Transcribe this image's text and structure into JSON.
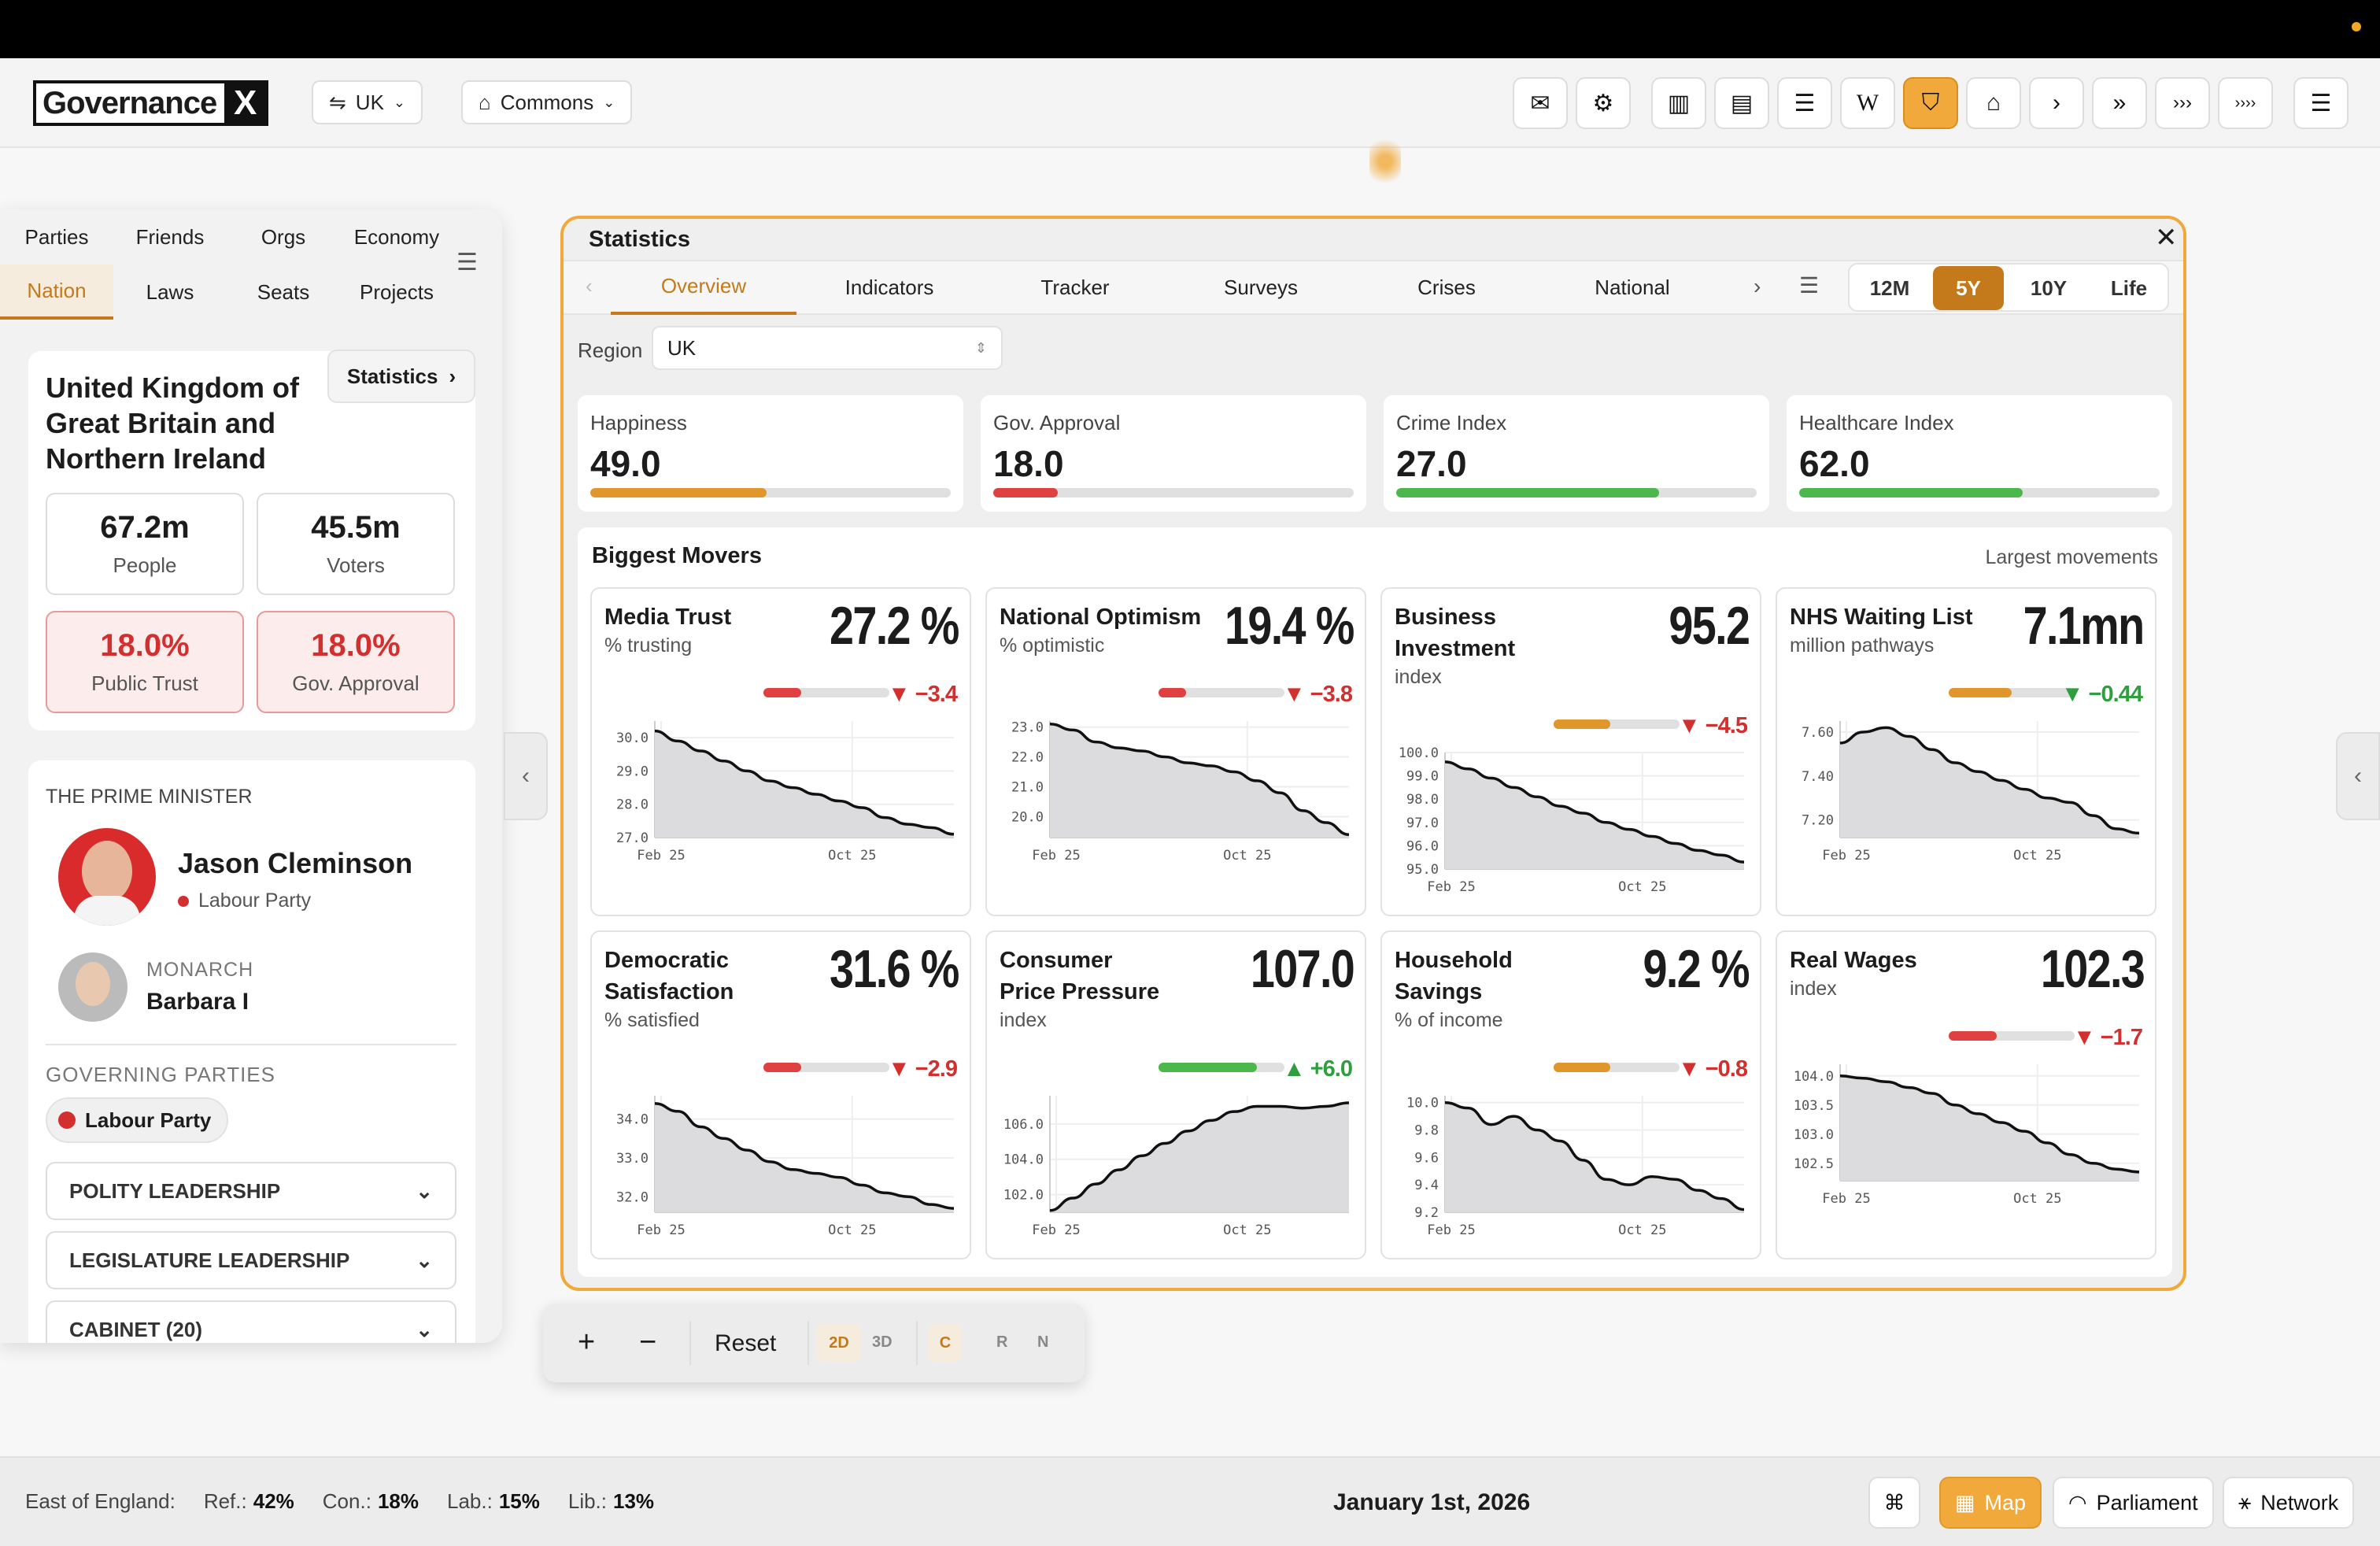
{
  "header": {
    "logo": "Governance",
    "logo_x": "X",
    "region_pill": "UK",
    "chamber_pill": "Commons"
  },
  "toolbar": {
    "icons": [
      "mail-icon",
      "sliders-icon",
      "buildings-icon",
      "newspaper-icon",
      "news-icon",
      "wikipedia-icon",
      "shield-icon",
      "home-icon",
      "chevron-right-icon",
      "double-chevron-icon",
      "triple-chevron-icon",
      "quad-chevron-icon",
      "menu-icon"
    ],
    "wiki": "W"
  },
  "left": {
    "nav_row1": [
      "Parties",
      "Friends",
      "Orgs",
      "Economy"
    ],
    "nav_row2": [
      "Nation",
      "Laws",
      "Seats",
      "Projects"
    ],
    "country": "United Kingdom of Great Britain and Northern Ireland",
    "statistics_btn": "Statistics",
    "stats": [
      {
        "v": "67.2m",
        "l": "People"
      },
      {
        "v": "45.5m",
        "l": "Voters"
      },
      {
        "v": "18.0%",
        "l": "Public Trust"
      },
      {
        "v": "18.0%",
        "l": "Gov. Approval"
      }
    ],
    "pm_label": "THE PRIME MINISTER",
    "pm_name": "Jason Cleminson",
    "pm_party": "Labour Party",
    "monarch_label": "MONARCH",
    "monarch_name": "Barbara I",
    "gov_parties_label": "GOVERNING PARTIES",
    "gov_party": "Labour Party",
    "accordions": [
      "POLITY LEADERSHIP",
      "LEGISLATURE LEADERSHIP",
      "CABINET (20)"
    ]
  },
  "modal": {
    "title": "Statistics",
    "tabs": [
      "Overview",
      "Indicators",
      "Tracker",
      "Surveys",
      "Crises",
      "National"
    ],
    "timeframes": [
      "12M",
      "5Y",
      "10Y",
      "Life"
    ],
    "region_label": "Region",
    "region_value": "UK",
    "indicators": [
      {
        "name": "Happiness",
        "value": "49.0",
        "pct": 49,
        "color": "#e0962a"
      },
      {
        "name": "Gov. Approval",
        "value": "18.0",
        "pct": 18,
        "color": "#e04040"
      },
      {
        "name": "Crime Index",
        "value": "27.0",
        "pct": 73,
        "color": "#4cb84c"
      },
      {
        "name": "Healthcare Index",
        "value": "62.0",
        "pct": 62,
        "color": "#4cb84c"
      }
    ],
    "movers_title": "Biggest Movers",
    "movers_sub": "Largest movements"
  },
  "movers": [
    {
      "title": "Media Trust",
      "sub": "% trusting",
      "value": "27.2 %",
      "delta": "▼ −3.4",
      "dir": "down",
      "bar": 0.3,
      "barcolor": "#e04040",
      "ticks": [
        "30.0",
        "29.0",
        "28.0",
        "27.0"
      ],
      "ylim": [
        27.0,
        30.5
      ],
      "y": [
        30.2,
        29.9,
        29.6,
        29.3,
        29.0,
        28.7,
        28.5,
        28.3,
        28.1,
        27.9,
        27.6,
        27.4,
        27.3,
        27.1
      ]
    },
    {
      "title": "National Optimism",
      "sub": "% optimistic",
      "value": "19.4 %",
      "delta": "▼ −3.8",
      "dir": "down",
      "bar": 0.22,
      "barcolor": "#e04040",
      "ticks": [
        "23.0",
        "22.0",
        "21.0",
        "20.0"
      ],
      "ylim": [
        19.3,
        23.2
      ],
      "y": [
        23.1,
        22.9,
        22.5,
        22.3,
        22.2,
        22.0,
        21.8,
        21.7,
        21.5,
        21.2,
        20.8,
        20.2,
        19.8,
        19.4
      ]
    },
    {
      "title": "Business Investment",
      "sub": "index",
      "value": "95.2",
      "delta": "▼ −4.5",
      "dir": "down",
      "bar": 0.45,
      "barcolor": "#e0962a",
      "ticks": [
        "100.0",
        "99.0",
        "98.0",
        "97.0",
        "96.0",
        "95.0"
      ],
      "ylim": [
        95.0,
        100.0
      ],
      "y": [
        99.6,
        99.3,
        98.9,
        98.5,
        98.1,
        97.7,
        97.4,
        97.0,
        96.7,
        96.4,
        96.1,
        95.8,
        95.6,
        95.3
      ]
    },
    {
      "title": "NHS Waiting List",
      "sub": "million pathways",
      "value": "7.1mn",
      "delta": "▼ −0.44",
      "dir": "down-good",
      "bar": 0.5,
      "barcolor": "#e0962a",
      "ticks": [
        "7.60",
        "7.40",
        "7.20"
      ],
      "ylim": [
        7.12,
        7.65
      ],
      "y": [
        7.55,
        7.6,
        7.62,
        7.58,
        7.52,
        7.46,
        7.42,
        7.38,
        7.34,
        7.3,
        7.28,
        7.22,
        7.16,
        7.14
      ]
    },
    {
      "title": "Democratic Satisfaction",
      "sub": "% satisfied",
      "value": "31.6 %",
      "delta": "▼ −2.9",
      "dir": "down",
      "bar": 0.3,
      "barcolor": "#e04040",
      "ticks": [
        "34.0",
        "33.0",
        "32.0"
      ],
      "ylim": [
        31.6,
        34.6
      ],
      "y": [
        34.4,
        34.2,
        33.8,
        33.5,
        33.2,
        32.9,
        32.7,
        32.6,
        32.5,
        32.3,
        32.1,
        32.0,
        31.8,
        31.7
      ]
    },
    {
      "title": "Consumer Price Pressure",
      "sub": "index",
      "value": "107.0",
      "delta": "▲ +6.0",
      "dir": "up",
      "bar": 0.78,
      "barcolor": "#4cb84c",
      "ticks": [
        "106.0",
        "104.0",
        "102.0"
      ],
      "ylim": [
        101.0,
        107.6
      ],
      "y": [
        101.1,
        101.8,
        102.6,
        103.4,
        104.2,
        104.9,
        105.6,
        106.2,
        106.7,
        107.0,
        107.0,
        106.9,
        107.0,
        107.2
      ]
    },
    {
      "title": "Household Savings",
      "sub": "% of income",
      "value": "9.2 %",
      "delta": "▼ −0.8",
      "dir": "down",
      "bar": 0.45,
      "barcolor": "#e0962a",
      "ticks": [
        "10.0",
        "9.8",
        "9.6",
        "9.4",
        "9.2"
      ],
      "ylim": [
        9.2,
        10.05
      ],
      "y": [
        10.0,
        9.96,
        9.84,
        9.9,
        9.8,
        9.72,
        9.58,
        9.44,
        9.4,
        9.46,
        9.44,
        9.36,
        9.3,
        9.22
      ]
    },
    {
      "title": "Real Wages",
      "sub": "index",
      "value": "102.3",
      "delta": "▼ −1.7",
      "dir": "down",
      "bar": 0.38,
      "barcolor": "#e04040",
      "ticks": [
        "104.0",
        "103.5",
        "103.0",
        "102.5"
      ],
      "ylim": [
        102.2,
        104.2
      ],
      "y": [
        104.0,
        103.96,
        103.9,
        103.8,
        103.7,
        103.5,
        103.35,
        103.2,
        103.05,
        102.85,
        102.65,
        102.5,
        102.4,
        102.35
      ]
    }
  ],
  "chart_x_labels": [
    "Feb 25",
    "Oct 25"
  ],
  "controls": {
    "plus": "+",
    "minus": "−",
    "reset": "Reset",
    "d2": "2D",
    "d3": "3D",
    "c": "C",
    "r": "R",
    "n": "N"
  },
  "footer": {
    "region": "East of England:",
    "parties": [
      {
        "name": "Ref.:",
        "val": "42%"
      },
      {
        "name": "Con.:",
        "val": "18%"
      },
      {
        "name": "Lab.:",
        "val": "15%"
      },
      {
        "name": "Lib.:",
        "val": "13%"
      }
    ],
    "date": "January 1st, 2026",
    "map": "Map",
    "parliament": "Parliament",
    "network": "Network"
  }
}
